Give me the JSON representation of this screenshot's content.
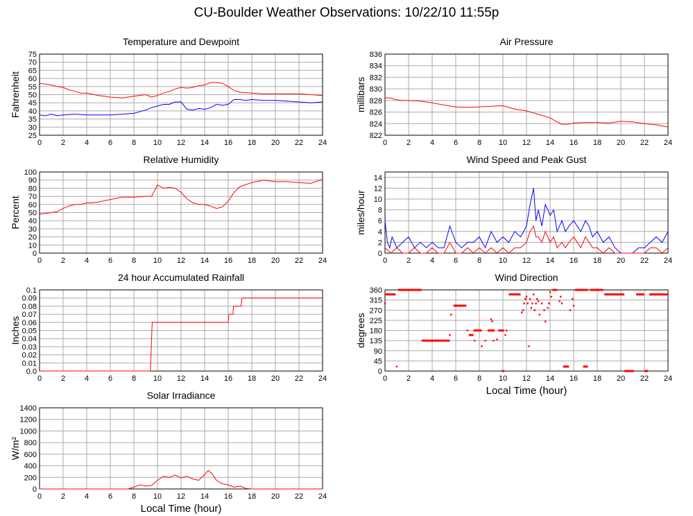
{
  "page_title": "CU-Boulder Weather Observations: 10/22/10 11:55p",
  "colors": {
    "primary": "#ff0000",
    "secondary": "#0000ff",
    "grid": "#aaaaaa"
  },
  "chart_data": [
    {
      "id": "temperature",
      "type": "line",
      "title": "Temperature and Dewpoint",
      "xlabel": "",
      "ylabel": "Fahrenheit",
      "xlim": [
        0,
        24
      ],
      "ylim": [
        25,
        75
      ],
      "xticks": [
        0,
        2,
        4,
        6,
        8,
        10,
        12,
        14,
        16,
        18,
        20,
        22,
        24
      ],
      "yticks": [
        25,
        30,
        35,
        40,
        45,
        50,
        55,
        60,
        65,
        70,
        75
      ],
      "ytick_labels": [
        "25",
        "30",
        "35",
        "40",
        "45",
        "50",
        "55",
        "60",
        "65",
        "70",
        "75"
      ],
      "series": [
        {
          "color": "#ff0000",
          "x": [
            0,
            0.5,
            1,
            1.5,
            2,
            2.5,
            3,
            3.5,
            4,
            5,
            6,
            7,
            8,
            9,
            9.5,
            10,
            10.5,
            11,
            11.5,
            12,
            12.5,
            13,
            13.5,
            14,
            14.5,
            15,
            15.5,
            16,
            16.5,
            17,
            18,
            19,
            20,
            21,
            22,
            23,
            24
          ],
          "y": [
            57,
            56.5,
            56,
            55,
            54.5,
            53,
            52,
            51,
            51,
            49.5,
            48.5,
            48,
            49,
            50,
            48.5,
            49.5,
            51,
            52,
            53.5,
            54.5,
            54,
            54.5,
            55.5,
            56,
            57.5,
            57.5,
            57,
            55,
            52.5,
            51.5,
            51,
            50.5,
            50.5,
            50.5,
            50.5,
            50,
            49.5
          ]
        },
        {
          "color": "#0000ff",
          "x": [
            0,
            0.5,
            1,
            1.5,
            2,
            3,
            4,
            5,
            6,
            7,
            8,
            9,
            9.5,
            10,
            10.5,
            11,
            11.5,
            12,
            12.5,
            13,
            13.5,
            14,
            14.5,
            15,
            15.5,
            16,
            16.5,
            17,
            17.5,
            18,
            19,
            20,
            21,
            22,
            23,
            24
          ],
          "y": [
            37.5,
            37,
            38,
            37,
            37.5,
            38,
            37.5,
            37.5,
            37.5,
            38,
            38.5,
            40.5,
            42,
            43,
            44,
            44,
            45.5,
            45.5,
            41,
            40.5,
            41.5,
            41,
            42,
            44,
            43.5,
            44,
            47,
            47,
            46.5,
            47,
            46.5,
            46.5,
            46,
            45.5,
            45,
            45.5
          ]
        }
      ]
    },
    {
      "id": "pressure",
      "type": "line",
      "title": "Air Pressure",
      "xlabel": "",
      "ylabel": "millibars",
      "xlim": [
        0,
        24
      ],
      "ylim": [
        822,
        836
      ],
      "xticks": [
        0,
        2,
        4,
        6,
        8,
        10,
        12,
        14,
        16,
        18,
        20,
        22,
        24
      ],
      "yticks": [
        822,
        824,
        826,
        828,
        830,
        832,
        834,
        836
      ],
      "ytick_labels": [
        "822",
        "824",
        "826",
        "828",
        "830",
        "832",
        "834",
        "836"
      ],
      "series": [
        {
          "color": "#ff0000",
          "x": [
            0,
            0.5,
            1,
            1.5,
            2,
            3,
            4,
            5,
            6,
            7,
            8,
            9,
            10,
            10.5,
            11,
            12,
            13,
            14,
            14.5,
            15,
            15.5,
            16,
            17,
            18,
            19,
            20,
            21,
            22,
            23,
            24
          ],
          "y": [
            828.5,
            828.4,
            828.1,
            828,
            828,
            827.9,
            827.6,
            827.2,
            826.9,
            826.8,
            826.9,
            827,
            827.1,
            826.8,
            826.5,
            826.2,
            825.6,
            825,
            824.4,
            823.9,
            823.9,
            824.1,
            824.2,
            824.2,
            824.1,
            824.4,
            824.3,
            824,
            823.8,
            823.4
          ]
        }
      ]
    },
    {
      "id": "humidity",
      "type": "line",
      "title": "Relative Humidity",
      "xlabel": "",
      "ylabel": "Percent",
      "xlim": [
        0,
        24
      ],
      "ylim": [
        0,
        100
      ],
      "xticks": [
        0,
        2,
        4,
        6,
        8,
        10,
        12,
        14,
        16,
        18,
        20,
        22,
        24
      ],
      "yticks": [
        0,
        10,
        20,
        30,
        40,
        50,
        60,
        70,
        80,
        90,
        100
      ],
      "ytick_labels": [
        "0",
        "10",
        "20",
        "30",
        "40",
        "50",
        "60",
        "70",
        "80",
        "90",
        "100"
      ],
      "series": [
        {
          "color": "#ff0000",
          "x": [
            0,
            0.5,
            1,
            1.5,
            2,
            2.5,
            3,
            3.5,
            4,
            4.5,
            5,
            6,
            7,
            8,
            9,
            9.5,
            10,
            10.5,
            11,
            11.5,
            12,
            12.5,
            13,
            13.5,
            14,
            14.5,
            15,
            15.5,
            16,
            16.5,
            17,
            18,
            19,
            20,
            21,
            22,
            23,
            24
          ],
          "y": [
            48,
            49,
            50,
            51,
            55,
            58,
            60,
            60,
            62,
            62,
            63,
            66,
            69,
            69,
            70,
            70,
            84,
            80,
            81,
            80,
            75,
            67,
            62,
            60,
            60,
            58,
            55,
            57,
            64,
            75,
            82,
            87,
            90,
            88,
            88,
            87,
            86,
            91
          ]
        }
      ]
    },
    {
      "id": "wind-speed",
      "type": "line",
      "title": "Wind Speed and Peak Gust",
      "xlabel": "",
      "ylabel": "miles/hour",
      "xlim": [
        0,
        24
      ],
      "ylim": [
        0,
        15
      ],
      "xticks": [
        0,
        2,
        4,
        6,
        8,
        10,
        12,
        14,
        16,
        18,
        20,
        22,
        24
      ],
      "yticks": [
        0,
        2,
        4,
        6,
        8,
        10,
        12,
        14
      ],
      "ytick_labels": [
        "0",
        "2",
        "4",
        "6",
        "8",
        "10",
        "12",
        "14"
      ],
      "series": [
        {
          "color": "#0000ff",
          "x": [
            0,
            0.2,
            0.4,
            0.6,
            1,
            1.5,
            2,
            2.5,
            3,
            3.5,
            4,
            4.5,
            5,
            5.5,
            6,
            6.5,
            7,
            7.5,
            8,
            8.5,
            9,
            9.5,
            10,
            10.5,
            11,
            11.5,
            12,
            12.3,
            12.6,
            12.8,
            13,
            13.3,
            13.6,
            14,
            14.3,
            14.6,
            15,
            15.3,
            15.6,
            16,
            16.3,
            16.6,
            17,
            17.3,
            17.6,
            18,
            18.5,
            19,
            19.5,
            20,
            20.5,
            21,
            21.5,
            22,
            22.5,
            23,
            23.5,
            24
          ],
          "y": [
            6,
            2,
            1,
            3,
            1,
            2,
            3,
            1,
            2,
            1,
            2,
            1,
            1,
            5,
            2,
            1,
            2,
            2,
            3,
            1,
            4,
            2,
            3,
            2,
            4,
            3,
            5,
            9,
            12,
            6,
            8,
            5,
            9,
            7,
            8,
            4,
            6,
            4,
            5,
            6,
            5,
            4,
            6,
            5,
            3,
            4,
            2,
            3,
            1,
            0,
            0,
            0,
            1,
            1,
            2,
            3,
            2,
            4
          ]
        },
        {
          "color": "#ff0000",
          "x": [
            0,
            0.5,
            1,
            1.5,
            2,
            2.5,
            3,
            3.5,
            4,
            4.5,
            5,
            5.5,
            6,
            6.5,
            7,
            7.5,
            8,
            8.5,
            9,
            9.5,
            10,
            10.5,
            11,
            11.5,
            12,
            12.3,
            12.6,
            12.8,
            13,
            13.3,
            13.6,
            14,
            14.3,
            14.6,
            15,
            15.3,
            15.6,
            16,
            16.3,
            16.6,
            17,
            17.3,
            17.6,
            18,
            18.5,
            19,
            19.5,
            20,
            20.5,
            21,
            21.5,
            22,
            22.5,
            23,
            23.5,
            24
          ],
          "y": [
            1,
            0,
            1,
            0,
            0,
            1,
            0,
            0,
            1,
            0,
            0,
            2,
            0,
            0,
            1,
            0,
            1,
            0,
            1,
            0,
            1,
            0,
            1,
            1,
            2,
            4,
            5,
            3,
            3,
            2,
            4,
            2,
            3,
            1,
            2,
            1,
            2,
            3,
            2,
            1,
            3,
            2,
            1,
            1,
            0,
            1,
            0,
            0,
            0,
            0,
            0,
            0,
            1,
            1,
            0,
            1
          ]
        }
      ]
    },
    {
      "id": "rainfall",
      "type": "line",
      "title": "24 hour Accumulated Rainfall",
      "xlabel": "",
      "ylabel": "Inches",
      "xlim": [
        0,
        24
      ],
      "ylim": [
        0,
        0.1
      ],
      "xticks": [
        0,
        2,
        4,
        6,
        8,
        10,
        12,
        14,
        16,
        18,
        20,
        22,
        24
      ],
      "yticks": [
        0,
        0.01,
        0.02,
        0.03,
        0.04,
        0.05,
        0.06,
        0.07,
        0.08,
        0.09,
        0.1
      ],
      "ytick_labels": [
        "0.0",
        "0.01",
        "0.02",
        "0.03",
        "0.04",
        "0.05",
        "0.06",
        "0.07",
        "0.08",
        "0.09",
        "0.1"
      ],
      "series": [
        {
          "color": "#ff0000",
          "x": [
            0,
            9.4,
            9.55,
            16,
            16.05,
            16.4,
            16.45,
            17.1,
            17.15,
            24
          ],
          "y": [
            0,
            0,
            0.06,
            0.06,
            0.07,
            0.07,
            0.08,
            0.08,
            0.09,
            0.09
          ]
        }
      ]
    },
    {
      "id": "wind-direction",
      "type": "scatter",
      "title": "Wind Direction",
      "xlabel": "Local Time (hour)",
      "ylabel": "degrees",
      "xlim": [
        0,
        24
      ],
      "ylim": [
        0,
        360
      ],
      "xticks": [
        0,
        2,
        4,
        6,
        8,
        10,
        12,
        14,
        16,
        18,
        20,
        22,
        24
      ],
      "yticks": [
        0,
        45,
        90,
        135,
        180,
        225,
        270,
        315,
        360
      ],
      "ytick_labels": [
        "0",
        "45",
        "90",
        "135",
        "180",
        "225",
        "270",
        "315",
        "360"
      ],
      "series": [
        {
          "color": "#ff0000",
          "segments": [
            [
              0,
              0.9,
              340
            ],
            [
              1.1,
              3.1,
              360
            ],
            [
              3.1,
              5.5,
              135
            ],
            [
              5.8,
              6.9,
              290
            ],
            [
              7.1,
              7.5,
              160
            ],
            [
              7.5,
              8.2,
              180
            ],
            [
              8.7,
              9.3,
              180
            ],
            [
              9.6,
              10.1,
              180
            ],
            [
              9.9,
              10.1,
              0
            ],
            [
              10.5,
              11.5,
              340
            ],
            [
              14.2,
              14.6,
              360
            ],
            [
              15.1,
              15.6,
              20
            ],
            [
              16.1,
              17.2,
              360
            ],
            [
              16.8,
              17.2,
              20
            ],
            [
              17.4,
              18.5,
              360
            ],
            [
              18.6,
              20.3,
              340
            ],
            [
              20.3,
              21.1,
              0
            ],
            [
              21.3,
              22,
              340
            ],
            [
              22,
              22.3,
              0
            ],
            [
              22.4,
              24,
              340
            ]
          ],
          "x": [
            0,
            1.0,
            5.5,
            5.6,
            7.0,
            7.6,
            7.9,
            8.2,
            8.5,
            9.0,
            9.1,
            9.2,
            9.5,
            9.8,
            10.2,
            10.3,
            11.6,
            11.7,
            11.8,
            11.9,
            12.0,
            12.1,
            12.2,
            12.3,
            12.4,
            12.5,
            12.6,
            12.7,
            12.8,
            12.9,
            13.0,
            13.1,
            13.3,
            13.5,
            13.6,
            13.8,
            13.9,
            14.0,
            14.1,
            14.8,
            14.9,
            15.0,
            15.7,
            15.9,
            16.0
          ],
          "y": [
            300,
            20,
            160,
            250,
            180,
            135,
            180,
            110,
            135,
            230,
            220,
            135,
            140,
            180,
            160,
            180,
            260,
            270,
            300,
            320,
            330,
            300,
            110,
            320,
            280,
            300,
            340,
            270,
            300,
            320,
            310,
            250,
            300,
            270,
            220,
            280,
            300,
            350,
            330,
            310,
            330,
            300,
            270,
            320,
            290
          ]
        }
      ]
    },
    {
      "id": "solar",
      "type": "line",
      "title": "Solar Irradiance",
      "xlabel": "Local Time (hour)",
      "ylabel": "W/m²",
      "xlim": [
        0,
        24
      ],
      "ylim": [
        0,
        1400
      ],
      "xticks": [
        0,
        2,
        4,
        6,
        8,
        10,
        12,
        14,
        16,
        18,
        20,
        22,
        24
      ],
      "yticks": [
        0,
        200,
        400,
        600,
        800,
        1000,
        1200,
        1400
      ],
      "ytick_labels": [
        "0",
        "200",
        "400",
        "600",
        "800",
        "1000",
        "1200",
        "1400"
      ],
      "series": [
        {
          "color": "#ff0000",
          "x": [
            0,
            7.5,
            8,
            8.5,
            9,
            9.5,
            10,
            10.5,
            11,
            11.5,
            12,
            12.5,
            13,
            13.5,
            14,
            14.3,
            14.6,
            15,
            15.5,
            16,
            16.5,
            17,
            17.5,
            18,
            24
          ],
          "y": [
            0,
            0,
            30,
            70,
            50,
            60,
            150,
            220,
            200,
            240,
            190,
            220,
            170,
            150,
            250,
            320,
            270,
            150,
            90,
            70,
            30,
            50,
            10,
            0,
            0
          ]
        }
      ]
    }
  ]
}
